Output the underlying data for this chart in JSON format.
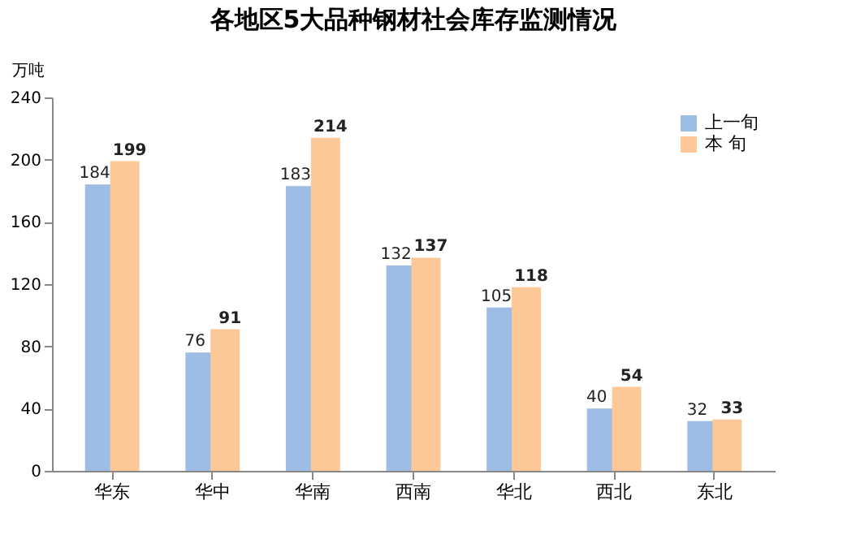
{
  "chart_data": {
    "type": "bar",
    "title": "各地区5大品种钢材社会库存监测情况",
    "ylabel": "万吨",
    "categories": [
      "华东",
      "华中",
      "华南",
      "西南",
      "华北",
      "西北",
      "东北"
    ],
    "series": [
      {
        "name": "上一旬",
        "color": "#9dbde4",
        "values": [
          184,
          76,
          183,
          132,
          105,
          40,
          32
        ]
      },
      {
        "name": "本  旬",
        "color": "#fcc898",
        "values": [
          199,
          91,
          214,
          137,
          118,
          54,
          33
        ]
      }
    ],
    "ylim": [
      0,
      240
    ],
    "yticks": [
      0,
      40,
      80,
      120,
      160,
      200,
      240
    ],
    "grid": false,
    "legend": "top right",
    "data_labels": true
  }
}
